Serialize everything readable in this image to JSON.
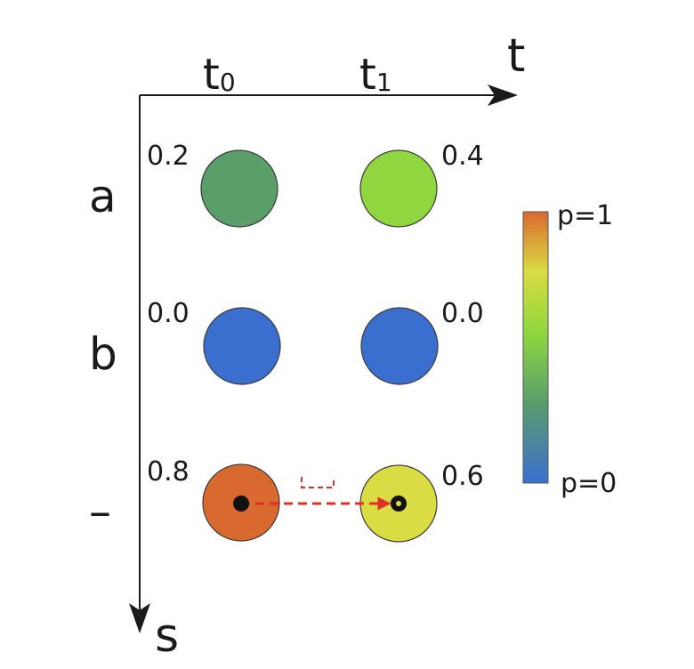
{
  "axes": {
    "time_label": "t",
    "state_label": "s",
    "time_ticks": [
      {
        "base": "t",
        "sub": "0"
      },
      {
        "base": "t",
        "sub": "1"
      }
    ],
    "state_ticks": [
      "a",
      "b",
      "–"
    ]
  },
  "nodes": [
    {
      "state": "a",
      "time": "t0",
      "value": "0.2",
      "p": 0.2,
      "color": "#5a9e6a",
      "marked": false
    },
    {
      "state": "a",
      "time": "t1",
      "value": "0.4",
      "p": 0.4,
      "color": "#8fd63f",
      "marked": false
    },
    {
      "state": "b",
      "time": "t0",
      "value": "0.0",
      "p": 0.0,
      "color": "#3a6fd0",
      "marked": false
    },
    {
      "state": "b",
      "time": "t1",
      "value": "0.0",
      "p": 0.0,
      "color": "#3a6fd0",
      "marked": false
    },
    {
      "state": "–",
      "time": "t0",
      "value": "0.8",
      "p": 0.8,
      "color": "#d9692e",
      "marked": true
    },
    {
      "state": "–",
      "time": "t1",
      "value": "0.6",
      "p": 0.6,
      "color": "#d9dc42",
      "marked": true
    }
  ],
  "transition": {
    "from": "–@t0",
    "to": "–@t1",
    "color": "#e0302a"
  },
  "colorbar": {
    "top_label": "p=1",
    "bottom_label": "p=0",
    "stops": [
      "#3a6fd0",
      "#5a9e6a",
      "#8fd63f",
      "#d9dc42",
      "#d9692e"
    ]
  }
}
